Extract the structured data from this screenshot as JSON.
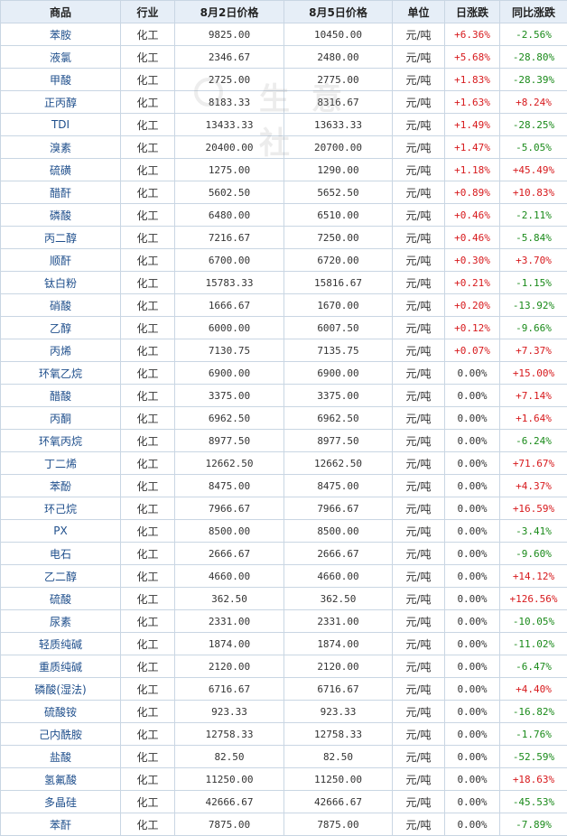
{
  "headers": [
    "商品",
    "行业",
    "8月2日价格",
    "8月5日价格",
    "单位",
    "日涨跌",
    "同比涨跌"
  ],
  "watermark_text": "生 意 社",
  "rows": [
    {
      "name": "苯胺",
      "industry": "化工",
      "p1": "9825.00",
      "p2": "10450.00",
      "unit": "元/吨",
      "day": "+6.36%",
      "yoy": "-2.56%"
    },
    {
      "name": "液氯",
      "industry": "化工",
      "p1": "2346.67",
      "p2": "2480.00",
      "unit": "元/吨",
      "day": "+5.68%",
      "yoy": "-28.80%"
    },
    {
      "name": "甲酸",
      "industry": "化工",
      "p1": "2725.00",
      "p2": "2775.00",
      "unit": "元/吨",
      "day": "+1.83%",
      "yoy": "-28.39%"
    },
    {
      "name": "正丙醇",
      "industry": "化工",
      "p1": "8183.33",
      "p2": "8316.67",
      "unit": "元/吨",
      "day": "+1.63%",
      "yoy": "+8.24%"
    },
    {
      "name": "TDI",
      "industry": "化工",
      "p1": "13433.33",
      "p2": "13633.33",
      "unit": "元/吨",
      "day": "+1.49%",
      "yoy": "-28.25%"
    },
    {
      "name": "溴素",
      "industry": "化工",
      "p1": "20400.00",
      "p2": "20700.00",
      "unit": "元/吨",
      "day": "+1.47%",
      "yoy": "-5.05%"
    },
    {
      "name": "硫磺",
      "industry": "化工",
      "p1": "1275.00",
      "p2": "1290.00",
      "unit": "元/吨",
      "day": "+1.18%",
      "yoy": "+45.49%"
    },
    {
      "name": "醋酐",
      "industry": "化工",
      "p1": "5602.50",
      "p2": "5652.50",
      "unit": "元/吨",
      "day": "+0.89%",
      "yoy": "+10.83%"
    },
    {
      "name": "磷酸",
      "industry": "化工",
      "p1": "6480.00",
      "p2": "6510.00",
      "unit": "元/吨",
      "day": "+0.46%",
      "yoy": "-2.11%"
    },
    {
      "name": "丙二醇",
      "industry": "化工",
      "p1": "7216.67",
      "p2": "7250.00",
      "unit": "元/吨",
      "day": "+0.46%",
      "yoy": "-5.84%"
    },
    {
      "name": "顺酐",
      "industry": "化工",
      "p1": "6700.00",
      "p2": "6720.00",
      "unit": "元/吨",
      "day": "+0.30%",
      "yoy": "+3.70%"
    },
    {
      "name": "钛白粉",
      "industry": "化工",
      "p1": "15783.33",
      "p2": "15816.67",
      "unit": "元/吨",
      "day": "+0.21%",
      "yoy": "-1.15%"
    },
    {
      "name": "硝酸",
      "industry": "化工",
      "p1": "1666.67",
      "p2": "1670.00",
      "unit": "元/吨",
      "day": "+0.20%",
      "yoy": "-13.92%"
    },
    {
      "name": "乙醇",
      "industry": "化工",
      "p1": "6000.00",
      "p2": "6007.50",
      "unit": "元/吨",
      "day": "+0.12%",
      "yoy": "-9.66%"
    },
    {
      "name": "丙烯",
      "industry": "化工",
      "p1": "7130.75",
      "p2": "7135.75",
      "unit": "元/吨",
      "day": "+0.07%",
      "yoy": "+7.37%"
    },
    {
      "name": "环氧乙烷",
      "industry": "化工",
      "p1": "6900.00",
      "p2": "6900.00",
      "unit": "元/吨",
      "day": "0.00%",
      "yoy": "+15.00%"
    },
    {
      "name": "醋酸",
      "industry": "化工",
      "p1": "3375.00",
      "p2": "3375.00",
      "unit": "元/吨",
      "day": "0.00%",
      "yoy": "+7.14%"
    },
    {
      "name": "丙酮",
      "industry": "化工",
      "p1": "6962.50",
      "p2": "6962.50",
      "unit": "元/吨",
      "day": "0.00%",
      "yoy": "+1.64%"
    },
    {
      "name": "环氧丙烷",
      "industry": "化工",
      "p1": "8977.50",
      "p2": "8977.50",
      "unit": "元/吨",
      "day": "0.00%",
      "yoy": "-6.24%"
    },
    {
      "name": "丁二烯",
      "industry": "化工",
      "p1": "12662.50",
      "p2": "12662.50",
      "unit": "元/吨",
      "day": "0.00%",
      "yoy": "+71.67%"
    },
    {
      "name": "苯酚",
      "industry": "化工",
      "p1": "8475.00",
      "p2": "8475.00",
      "unit": "元/吨",
      "day": "0.00%",
      "yoy": "+4.37%"
    },
    {
      "name": "环己烷",
      "industry": "化工",
      "p1": "7966.67",
      "p2": "7966.67",
      "unit": "元/吨",
      "day": "0.00%",
      "yoy": "+16.59%"
    },
    {
      "name": "PX",
      "industry": "化工",
      "p1": "8500.00",
      "p2": "8500.00",
      "unit": "元/吨",
      "day": "0.00%",
      "yoy": "-3.41%"
    },
    {
      "name": "电石",
      "industry": "化工",
      "p1": "2666.67",
      "p2": "2666.67",
      "unit": "元/吨",
      "day": "0.00%",
      "yoy": "-9.60%"
    },
    {
      "name": "乙二醇",
      "industry": "化工",
      "p1": "4660.00",
      "p2": "4660.00",
      "unit": "元/吨",
      "day": "0.00%",
      "yoy": "+14.12%"
    },
    {
      "name": "硫酸",
      "industry": "化工",
      "p1": "362.50",
      "p2": "362.50",
      "unit": "元/吨",
      "day": "0.00%",
      "yoy": "+126.56%"
    },
    {
      "name": "尿素",
      "industry": "化工",
      "p1": "2331.00",
      "p2": "2331.00",
      "unit": "元/吨",
      "day": "0.00%",
      "yoy": "-10.05%"
    },
    {
      "name": "轻质纯碱",
      "industry": "化工",
      "p1": "1874.00",
      "p2": "1874.00",
      "unit": "元/吨",
      "day": "0.00%",
      "yoy": "-11.02%"
    },
    {
      "name": "重质纯碱",
      "industry": "化工",
      "p1": "2120.00",
      "p2": "2120.00",
      "unit": "元/吨",
      "day": "0.00%",
      "yoy": "-6.47%"
    },
    {
      "name": "磷酸(湿法)",
      "industry": "化工",
      "p1": "6716.67",
      "p2": "6716.67",
      "unit": "元/吨",
      "day": "0.00%",
      "yoy": "+4.40%"
    },
    {
      "name": "硫酸铵",
      "industry": "化工",
      "p1": "923.33",
      "p2": "923.33",
      "unit": "元/吨",
      "day": "0.00%",
      "yoy": "-16.82%"
    },
    {
      "name": "己内酰胺",
      "industry": "化工",
      "p1": "12758.33",
      "p2": "12758.33",
      "unit": "元/吨",
      "day": "0.00%",
      "yoy": "-1.76%"
    },
    {
      "name": "盐酸",
      "industry": "化工",
      "p1": "82.50",
      "p2": "82.50",
      "unit": "元/吨",
      "day": "0.00%",
      "yoy": "-52.59%"
    },
    {
      "name": "氢氟酸",
      "industry": "化工",
      "p1": "11250.00",
      "p2": "11250.00",
      "unit": "元/吨",
      "day": "0.00%",
      "yoy": "+18.63%"
    },
    {
      "name": "多晶硅",
      "industry": "化工",
      "p1": "42666.67",
      "p2": "42666.67",
      "unit": "元/吨",
      "day": "0.00%",
      "yoy": "-45.53%"
    },
    {
      "name": "苯酐",
      "industry": "化工",
      "p1": "7875.00",
      "p2": "7875.00",
      "unit": "元/吨",
      "day": "0.00%",
      "yoy": "-7.89%"
    }
  ]
}
